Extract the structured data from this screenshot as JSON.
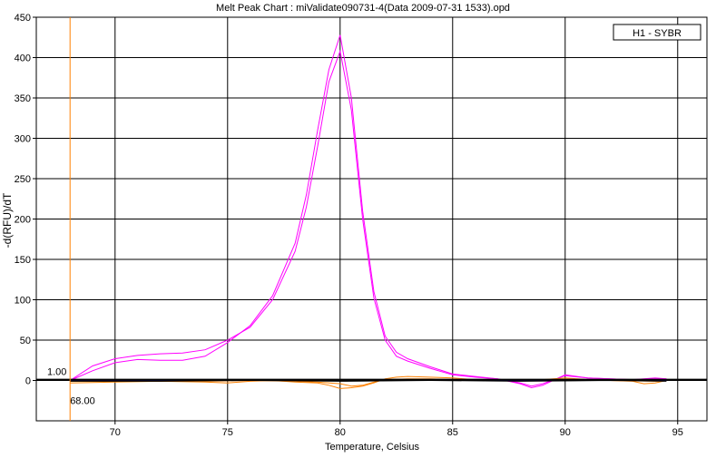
{
  "chart_data": {
    "type": "line",
    "title": "Melt Peak Chart : miValidate090731-4(Data 2009-07-31 1533).opd",
    "xlabel": "Temperature, Celsius",
    "ylabel": "-d(RFU)/dT",
    "xlim": [
      66.5,
      96.3
    ],
    "ylim": [
      -50,
      450
    ],
    "x_ticks": [
      70,
      75,
      80,
      85,
      90,
      95
    ],
    "y_ticks": [
      0,
      50,
      100,
      150,
      200,
      250,
      300,
      350,
      400,
      450
    ],
    "x_tick_labels": [
      "70",
      "75",
      "80",
      "85",
      "90",
      "95"
    ],
    "y_tick_labels": [
      "0",
      "50",
      "100",
      "150",
      "200",
      "250",
      "300",
      "350",
      "400",
      "450"
    ],
    "grid": true,
    "legend": {
      "text": "H1 - SYBR",
      "placement": "top-right"
    },
    "threshold": {
      "value": 1.0,
      "label": "1.00"
    },
    "cursor": {
      "x": 68.0,
      "label": "68.00"
    },
    "colors": {
      "magenta": "#ff00ff",
      "orange": "#ff8000",
      "navy": "#000080",
      "black": "#000000",
      "gridline": "#000000",
      "cursor": "#ff8000"
    },
    "series": [
      {
        "color": "#ff00ff",
        "x": [
          68.0,
          69.0,
          70.0,
          71.0,
          72.0,
          73.0,
          74.0,
          75.0,
          76.0,
          77.0,
          78.0,
          78.5,
          79.0,
          79.5,
          80.0,
          80.5,
          81.0,
          81.5,
          82.0,
          82.5,
          83.0,
          84.0,
          85.0,
          86.0,
          87.0,
          88.0,
          88.5,
          89.0,
          90.0,
          91.0,
          92.0,
          93.0,
          94.0,
          94.5
        ],
        "y": [
          0,
          12,
          22,
          26,
          25,
          25,
          30,
          47,
          68,
          105,
          170,
          230,
          310,
          385,
          428,
          350,
          210,
          110,
          55,
          35,
          27,
          17,
          8,
          5,
          2,
          -4,
          -9,
          -6,
          7,
          3,
          2,
          1,
          3,
          2
        ]
      },
      {
        "color": "#ff00ff",
        "x": [
          68.0,
          69.0,
          70.0,
          71.0,
          72.0,
          73.0,
          74.0,
          75.0,
          76.0,
          77.0,
          78.0,
          78.5,
          79.0,
          79.5,
          80.0,
          80.5,
          81.0,
          81.5,
          82.0,
          82.5,
          83.0,
          84.0,
          85.0,
          86.0,
          87.0,
          88.0,
          88.5,
          89.0,
          90.0,
          91.0,
          92.0,
          93.0,
          94.0,
          94.5
        ],
        "y": [
          0,
          18,
          27,
          31,
          33,
          34,
          38,
          50,
          66,
          100,
          160,
          215,
          290,
          370,
          408,
          335,
          200,
          102,
          50,
          30,
          24,
          15,
          7,
          4,
          2,
          -3,
          -7,
          -4,
          6,
          3,
          2,
          1,
          2,
          2
        ]
      },
      {
        "color": "#ff8000",
        "x": [
          68.0,
          70.0,
          72.0,
          74.0,
          75.0,
          76.0,
          77.0,
          78.0,
          79.0,
          79.5,
          80.0,
          80.5,
          81.0,
          81.5,
          82.0,
          82.5,
          83.0,
          84.0,
          85.0,
          86.0,
          87.0,
          88.0,
          89.0,
          90.0,
          91.0,
          92.0,
          93.0,
          93.5,
          94.0,
          94.5
        ],
        "y": [
          -3,
          -2,
          -1,
          -2,
          -3,
          -1,
          0,
          -2,
          -3,
          -6,
          -10,
          -9,
          -7,
          -3,
          2,
          4,
          5,
          4,
          3,
          1,
          0,
          0,
          1,
          3,
          1,
          0,
          -1,
          -4,
          -3,
          0
        ]
      },
      {
        "color": "#ff8000",
        "x": [
          68.0,
          70.0,
          72.0,
          74.0,
          76.0,
          78.0,
          79.0,
          80.0,
          80.5,
          81.0,
          81.5,
          82.0,
          83.0,
          84.0,
          85.0,
          86.0,
          88.0,
          90.0,
          92.0,
          94.0,
          94.5
        ],
        "y": [
          -1,
          -1,
          0,
          -1,
          0,
          -1,
          -2,
          -4,
          -7,
          -6,
          -2,
          1,
          2,
          2,
          1,
          0,
          0,
          1,
          0,
          -1,
          0
        ]
      },
      {
        "color": "#000080",
        "x": [
          68.0,
          72.0,
          76.0,
          80.0,
          84.0,
          88.0,
          92.0,
          94.5
        ],
        "y": [
          0,
          0,
          0,
          1,
          0,
          0,
          0,
          0
        ]
      },
      {
        "color": "#000000",
        "x": [
          68.0,
          72.0,
          76.0,
          80.0,
          84.0,
          88.0,
          92.0,
          94.5
        ],
        "y": [
          -1,
          -1,
          0,
          -1,
          0,
          -1,
          0,
          -1
        ]
      }
    ]
  }
}
